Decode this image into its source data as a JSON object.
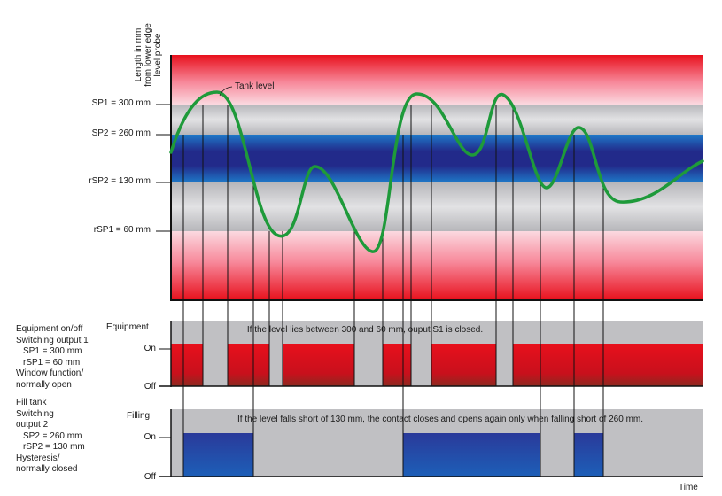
{
  "figure": {
    "ylabel_lines": [
      "Length in mm",
      "from lower edge",
      "level probe"
    ],
    "curve_label": "Tank level",
    "time_label": "Time"
  },
  "levels": {
    "sp1": "SP1 = 300 mm",
    "sp2": "SP2 = 260 mm",
    "rsp2": "rSP2 = 130 mm",
    "rsp1": "rSP1 = 60 mm"
  },
  "panel1": {
    "title": "Equipment",
    "on": "On",
    "off": "Off",
    "note": "If the level lies between 300 and 60 mm, ouput S1 is closed.",
    "side": [
      "Equipment on/off",
      "Switching output 1",
      "SP1 = 300 mm",
      "rSP1 = 60 mm",
      "Window function/",
      "normally open"
    ]
  },
  "panel2": {
    "title": "Filling",
    "on": "On",
    "off": "Off",
    "note": "If the level falls short of 130 mm, the contact closes and opens again only when falling short of 260 mm.",
    "side": [
      "Fill tank",
      "Switching",
      "output 2",
      "SP2 = 260 mm",
      "rSP2 = 130 mm",
      "Hysteresis/",
      "normally closed"
    ]
  },
  "colors": {
    "red": "#e8101c",
    "blue": "#1f3f9c",
    "gray": "#c0c0c3",
    "curve": "#1e9a3a"
  }
}
